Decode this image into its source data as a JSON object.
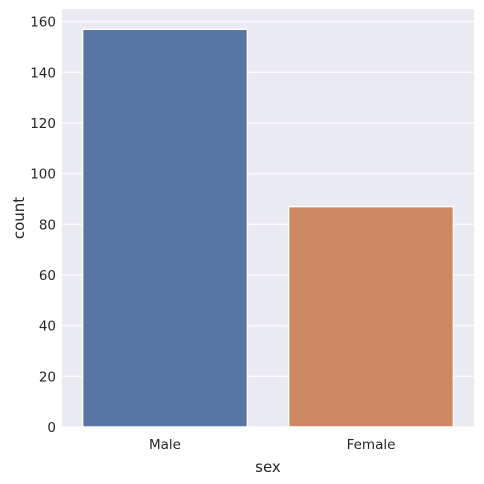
{
  "chart_data": {
    "type": "bar",
    "xlabel": "sex",
    "ylabel": "count",
    "categories": [
      "Male",
      "Female"
    ],
    "values": [
      157,
      87
    ],
    "ylim": [
      0,
      165
    ],
    "yticks": [
      0,
      20,
      40,
      60,
      80,
      100,
      120,
      140,
      160
    ],
    "grid": true,
    "colors": {
      "plot_background": "#EAEAF2",
      "grid": "#FFFFFF",
      "bars": [
        "#5975A4",
        "#CC8963"
      ]
    }
  }
}
